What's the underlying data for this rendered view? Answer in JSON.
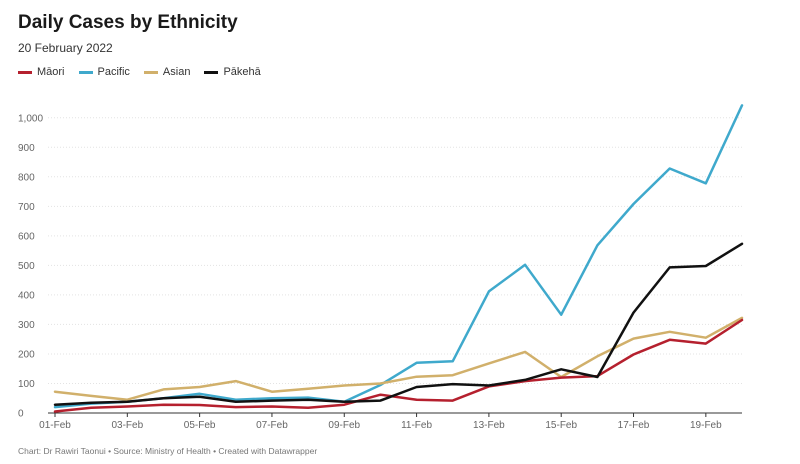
{
  "header": {
    "title": "Daily Cases by Ethnicity",
    "subtitle": "20 February 2022"
  },
  "footer": {
    "credit": "Chart: Dr Rawiri Taonui • Source: Ministry of Health • Created with Datawrapper"
  },
  "chart_data": {
    "type": "line",
    "title": "Daily Cases by Ethnicity",
    "subtitle": "20 February 2022",
    "xlabel": "",
    "ylabel": "",
    "ylim": [
      0,
      1050
    ],
    "yticks": [
      0,
      100,
      200,
      300,
      400,
      500,
      600,
      700,
      800,
      900,
      1000
    ],
    "ytick_labels": [
      "0",
      "100",
      "200",
      "300",
      "400",
      "500",
      "600",
      "700",
      "800",
      "900",
      "1,000"
    ],
    "x": [
      "01-Feb",
      "02-Feb",
      "03-Feb",
      "04-Feb",
      "05-Feb",
      "06-Feb",
      "07-Feb",
      "08-Feb",
      "09-Feb",
      "10-Feb",
      "11-Feb",
      "12-Feb",
      "13-Feb",
      "14-Feb",
      "15-Feb",
      "16-Feb",
      "17-Feb",
      "18-Feb",
      "19-Feb",
      "20-Feb"
    ],
    "xtick_labels": [
      "01-Feb",
      "03-Feb",
      "05-Feb",
      "07-Feb",
      "09-Feb",
      "11-Feb",
      "13-Feb",
      "15-Feb",
      "17-Feb",
      "19-Feb"
    ],
    "xtick_indices": [
      0,
      2,
      4,
      6,
      8,
      10,
      12,
      14,
      16,
      18
    ],
    "grid": true,
    "legend_position": "top-left",
    "series": [
      {
        "name": "Māori",
        "color": "#b5202e",
        "values": [
          5,
          18,
          22,
          28,
          27,
          20,
          22,
          18,
          28,
          62,
          45,
          42,
          90,
          108,
          120,
          125,
          198,
          248,
          235,
          315
        ]
      },
      {
        "name": "Pacific",
        "color": "#3fa9cc",
        "values": [
          20,
          32,
          38,
          50,
          65,
          45,
          50,
          52,
          38,
          95,
          170,
          175,
          412,
          502,
          333,
          568,
          708,
          828,
          778,
          1042
        ]
      },
      {
        "name": "Asian",
        "color": "#d1b06b",
        "values": [
          72,
          58,
          45,
          80,
          88,
          108,
          72,
          82,
          93,
          100,
          123,
          128,
          168,
          207,
          122,
          192,
          252,
          275,
          255,
          322
        ]
      },
      {
        "name": "Pākehā",
        "color": "#111111",
        "values": [
          28,
          35,
          38,
          50,
          55,
          38,
          42,
          45,
          38,
          42,
          88,
          98,
          93,
          112,
          148,
          122,
          340,
          493,
          498,
          573
        ]
      }
    ]
  }
}
